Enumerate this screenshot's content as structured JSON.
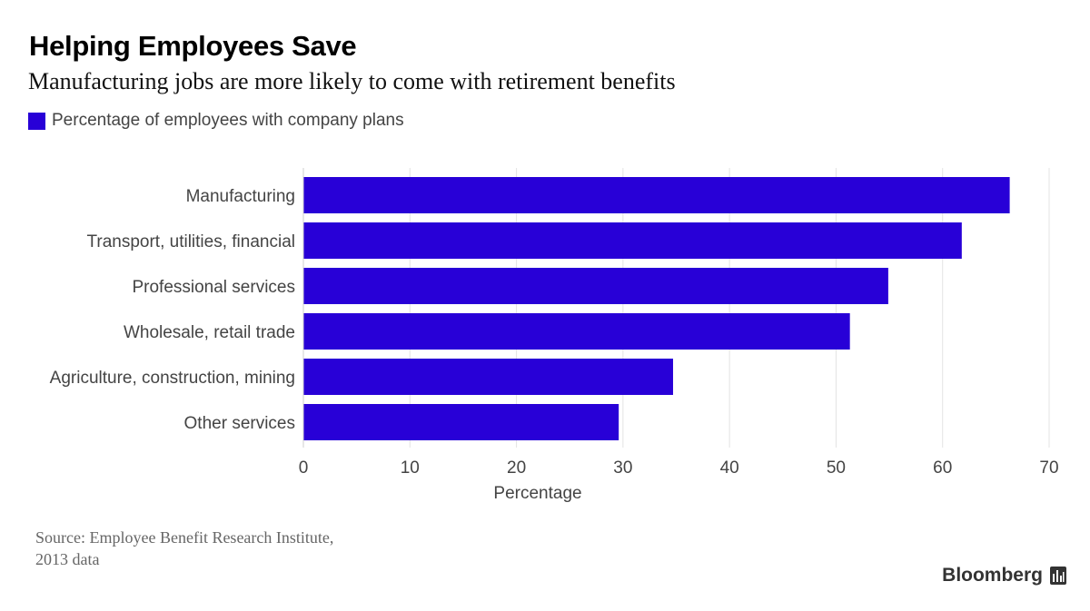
{
  "chart_data": {
    "type": "bar",
    "orientation": "horizontal",
    "title": "Helping Employees Save",
    "subtitle": "Manufacturing jobs are more likely to come with retirement benefits",
    "categories": [
      "Manufacturing",
      "Transport, utilities, financial",
      "Professional services",
      "Wholesale, retail trade",
      "Agriculture, construction, mining",
      "Other services"
    ],
    "series": [
      {
        "name": "Percentage of employees with company plans",
        "values": [
          66.3,
          61.8,
          54.9,
          51.3,
          34.7,
          29.6
        ],
        "color": "#2800d7"
      }
    ],
    "xlabel": "Percentage",
    "xlim": [
      0,
      70
    ],
    "xticks": [
      0,
      10,
      20,
      30,
      40,
      50,
      60,
      70
    ],
    "grid": true,
    "legend_position": "top-left"
  },
  "footer": {
    "source_line1": "Source: Employee Benefit Research Institute,",
    "source_line2": "2013 data",
    "brand": "Bloomberg"
  },
  "icons": {
    "brand_mark": "bloomberg-bars-icon"
  }
}
